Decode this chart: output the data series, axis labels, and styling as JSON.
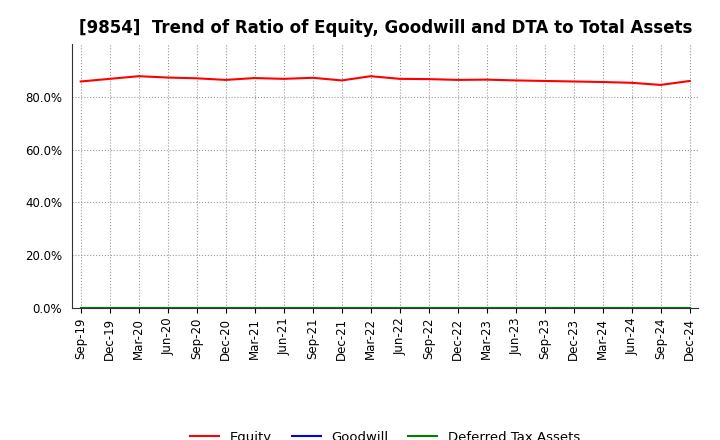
{
  "title": "[9854]  Trend of Ratio of Equity, Goodwill and DTA to Total Assets",
  "x_labels": [
    "Sep-19",
    "Dec-19",
    "Mar-20",
    "Jun-20",
    "Sep-20",
    "Dec-20",
    "Mar-21",
    "Jun-21",
    "Sep-21",
    "Dec-21",
    "Mar-22",
    "Jun-22",
    "Sep-22",
    "Dec-22",
    "Mar-23",
    "Jun-23",
    "Sep-23",
    "Dec-23",
    "Mar-24",
    "Jun-24",
    "Sep-24",
    "Dec-24"
  ],
  "equity": [
    0.858,
    0.868,
    0.878,
    0.873,
    0.87,
    0.864,
    0.871,
    0.868,
    0.872,
    0.862,
    0.878,
    0.868,
    0.867,
    0.864,
    0.865,
    0.862,
    0.86,
    0.858,
    0.856,
    0.853,
    0.845,
    0.86
  ],
  "goodwill": [
    0.0,
    0.0,
    0.0,
    0.0,
    0.0,
    0.0,
    0.0,
    0.0,
    0.0,
    0.0,
    0.0,
    0.0,
    0.0,
    0.0,
    0.0,
    0.0,
    0.0,
    0.0,
    0.0,
    0.0,
    0.0,
    0.0
  ],
  "dta": [
    0.0,
    0.0,
    0.0,
    0.0,
    0.0,
    0.0,
    0.0,
    0.0,
    0.0,
    0.0,
    0.0,
    0.0,
    0.0,
    0.0,
    0.0,
    0.0,
    0.0,
    0.0,
    0.0,
    0.0,
    0.0,
    0.0
  ],
  "equity_color": "#ff0000",
  "goodwill_color": "#0000ff",
  "dta_color": "#008000",
  "ylim": [
    0.0,
    1.0
  ],
  "yticks": [
    0.0,
    0.2,
    0.4,
    0.6,
    0.8
  ],
  "background_color": "#ffffff",
  "grid_color": "#999999",
  "title_fontsize": 12,
  "tick_fontsize": 8.5,
  "legend_labels": [
    "Equity",
    "Goodwill",
    "Deferred Tax Assets"
  ]
}
